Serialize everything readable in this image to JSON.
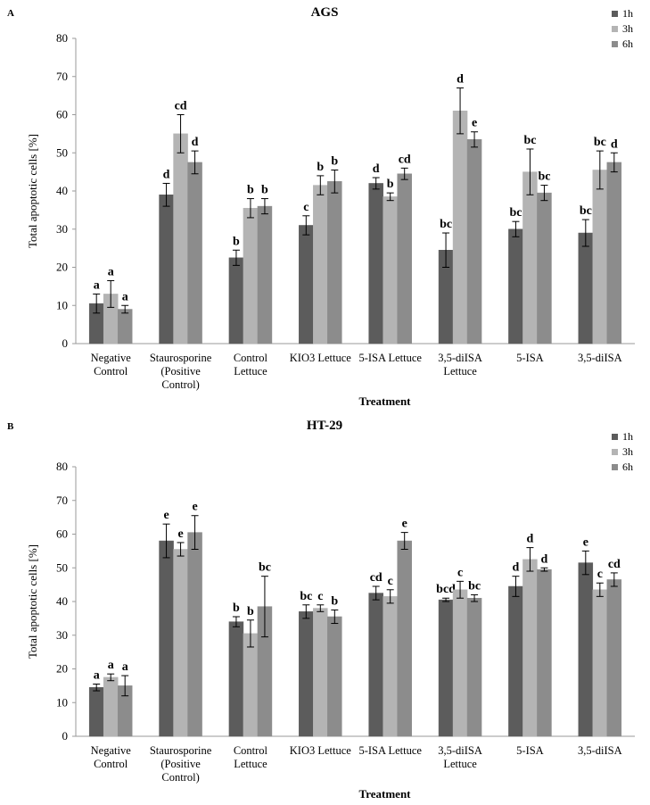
{
  "chart_data": [
    {
      "type": "bar",
      "panel_label": "A",
      "title": "AGS",
      "xlabel": "Treatment",
      "ylabel": "Total apoptotic cells [%]",
      "ylim": [
        0,
        80
      ],
      "yticks": [
        0,
        10,
        20,
        30,
        40,
        50,
        60,
        70,
        80
      ],
      "grid": false,
      "legend_position": "top-right",
      "categories": [
        [
          "Negative",
          "Control"
        ],
        [
          "Staurosporine",
          "(Positive",
          "Control)"
        ],
        [
          "Control",
          "Lettuce"
        ],
        [
          "KIO3 Lettuce"
        ],
        [
          "5-ISA Lettuce"
        ],
        [
          "3,5-diISA",
          "Lettuce"
        ],
        [
          "5-ISA"
        ],
        [
          "3,5-diISA"
        ]
      ],
      "series": [
        {
          "name": "1h",
          "color": "#5c5c5c",
          "values": [
            10.5,
            39,
            22.5,
            31,
            42,
            24.5,
            30,
            29
          ],
          "errors": [
            2.5,
            3,
            2,
            2.5,
            1.5,
            4.5,
            2,
            3.5
          ],
          "labels": [
            "a",
            "d",
            "b",
            "c",
            "d",
            "bc",
            "bc",
            "bc"
          ]
        },
        {
          "name": "3h",
          "color": "#b4b4b4",
          "values": [
            13,
            55,
            35.5,
            41.5,
            38.5,
            61,
            45,
            45.5
          ],
          "errors": [
            3.5,
            5,
            2.5,
            2.5,
            1,
            6,
            6,
            5
          ],
          "labels": [
            "a",
            "cd",
            "b",
            "b",
            "b",
            "d",
            "bc",
            "bc"
          ]
        },
        {
          "name": "6h",
          "color": "#8c8c8c",
          "values": [
            9,
            47.5,
            36,
            42.5,
            44.5,
            53.5,
            39.5,
            47.5
          ],
          "errors": [
            1,
            3,
            2,
            3,
            1.5,
            2,
            2,
            2.5
          ],
          "labels": [
            "a",
            "d",
            "b",
            "b",
            "cd",
            "e",
            "bc",
            "d"
          ]
        }
      ]
    },
    {
      "type": "bar",
      "panel_label": "B",
      "title": "HT-29",
      "xlabel": "Treatment",
      "ylabel": "Total apoptotic cells [%]",
      "ylim": [
        0,
        80
      ],
      "yticks": [
        0,
        10,
        20,
        30,
        40,
        50,
        60,
        70,
        80
      ],
      "grid": false,
      "legend_position": "top-right",
      "categories": [
        [
          "Negative",
          "Control"
        ],
        [
          "Staurosporine",
          "(Positive",
          "Control)"
        ],
        [
          "Control",
          "Lettuce"
        ],
        [
          "KIO3 Lettuce"
        ],
        [
          "5-ISA Lettuce"
        ],
        [
          "3,5-diISA",
          "Lettuce"
        ],
        [
          "5-ISA"
        ],
        [
          "3,5-diISA"
        ]
      ],
      "series": [
        {
          "name": "1h",
          "color": "#5c5c5c",
          "values": [
            14.5,
            58,
            34,
            37,
            42.5,
            40.5,
            44.5,
            51.5
          ],
          "errors": [
            1,
            5,
            1.5,
            2,
            2,
            0.5,
            3,
            3.5
          ],
          "labels": [
            "a",
            "e",
            "b",
            "bc",
            "cd",
            "bcd",
            "d",
            "e"
          ]
        },
        {
          "name": "3h",
          "color": "#b4b4b4",
          "values": [
            17.5,
            55.5,
            30.5,
            38,
            41.5,
            43.5,
            52.5,
            43.5
          ],
          "errors": [
            1,
            2,
            4,
            1,
            2,
            2.5,
            3.5,
            2
          ],
          "labels": [
            "a",
            "e",
            "b",
            "c",
            "c",
            "c",
            "d",
            "c"
          ]
        },
        {
          "name": "6h",
          "color": "#8c8c8c",
          "values": [
            15,
            60.5,
            38.5,
            35.5,
            58,
            41,
            49.5,
            46.5
          ],
          "errors": [
            3,
            5,
            9,
            2,
            2.5,
            1,
            0.5,
            2
          ],
          "labels": [
            "a",
            "e",
            "bc",
            "b",
            "e",
            "bc",
            "d",
            "cd"
          ]
        }
      ]
    }
  ]
}
